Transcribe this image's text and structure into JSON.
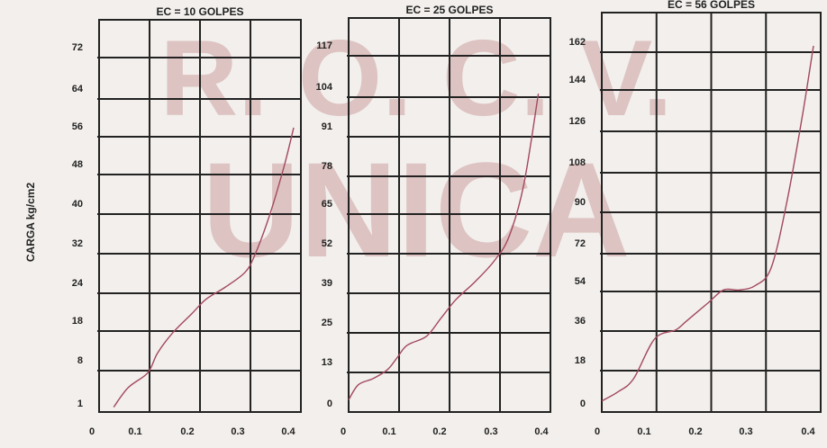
{
  "y_axis_label": "CARGA kg/cm2",
  "watermark": {
    "line1": "R. O. C. V.",
    "line2": "UNICA",
    "color": "#b56b6b"
  },
  "colors": {
    "background": "#f2efec",
    "grid": "#222222",
    "curve": "#a3485e",
    "text": "#222222"
  },
  "chart_data": [
    {
      "type": "line",
      "title": "EC = 10 GOLPES",
      "x_ticks": [
        "0",
        "0.1",
        "0.2",
        "0.3",
        "0.4"
      ],
      "y_ticks": [
        "1",
        "8",
        "18",
        "24",
        "32",
        "40",
        "48",
        "56",
        "64",
        "72"
      ],
      "xlim": [
        0,
        0.4
      ],
      "ylim": [
        0,
        80
      ],
      "grid": true,
      "series": [
        {
          "x": [
            0.03,
            0.06,
            0.1,
            0.12,
            0.15,
            0.19,
            0.22,
            0.26,
            0.3,
            0.32,
            0.35,
            0.38,
            0.4
          ],
          "y": [
            1,
            5,
            8,
            12,
            16,
            20,
            23,
            25.5,
            28.5,
            32,
            40,
            50,
            58
          ]
        }
      ]
    },
    {
      "type": "line",
      "title": "EC = 25 GOLPES",
      "x_ticks": [
        "0",
        "0.1",
        "0.2",
        "0.3",
        "0.4"
      ],
      "y_ticks": [
        "0",
        "13",
        "25",
        "39",
        "52",
        "65",
        "78",
        "91",
        "104",
        "117"
      ],
      "xlim": [
        0,
        0.4
      ],
      "ylim": [
        -3,
        127
      ],
      "grid": true,
      "series": [
        {
          "x": [
            0.0,
            0.02,
            0.05,
            0.08,
            0.1,
            0.12,
            0.16,
            0.19,
            0.22,
            0.26,
            0.3,
            0.33,
            0.36,
            0.39
          ],
          "y": [
            1,
            6,
            8,
            11,
            15,
            19,
            22,
            28,
            34,
            40,
            47,
            55,
            72,
            102
          ]
        }
      ]
    },
    {
      "type": "line",
      "title": "EC = 56 GOLPES",
      "x_ticks": [
        "0",
        "0.1",
        "0.2",
        "0.3",
        "0.4"
      ],
      "y_ticks": [
        "0",
        "18",
        "36",
        "54",
        "72",
        "90",
        "108",
        "126",
        "144",
        "162"
      ],
      "xlim": [
        0,
        0.4
      ],
      "ylim": [
        -5,
        175
      ],
      "grid": true,
      "series": [
        {
          "x": [
            0.0,
            0.03,
            0.06,
            0.1,
            0.14,
            0.16,
            0.2,
            0.23,
            0.26,
            0.29,
            0.32,
            0.35,
            0.38,
            0.4
          ],
          "y": [
            0,
            4,
            10,
            28,
            32,
            36,
            44,
            50,
            50,
            52,
            60,
            90,
            130,
            160
          ]
        }
      ]
    }
  ]
}
